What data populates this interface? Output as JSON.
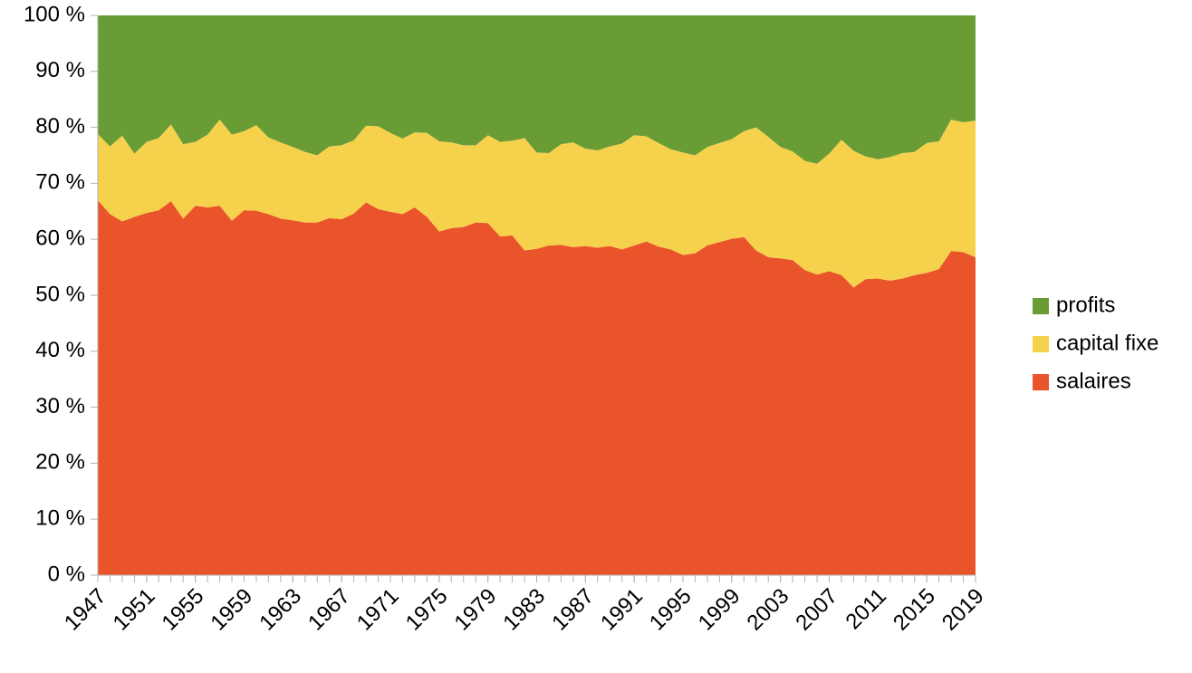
{
  "chart_data": {
    "type": "stacked_area",
    "stacked_percent": true,
    "legend": "right",
    "x": [
      1947,
      1948,
      1949,
      1950,
      1951,
      1952,
      1953,
      1954,
      1955,
      1956,
      1957,
      1958,
      1959,
      1960,
      1961,
      1962,
      1963,
      1964,
      1965,
      1966,
      1967,
      1968,
      1969,
      1970,
      1971,
      1972,
      1973,
      1974,
      1975,
      1976,
      1977,
      1978,
      1979,
      1980,
      1981,
      1982,
      1983,
      1984,
      1985,
      1986,
      1987,
      1988,
      1989,
      1990,
      1991,
      1992,
      1993,
      1994,
      1995,
      1996,
      1997,
      1998,
      1999,
      2000,
      2001,
      2002,
      2003,
      2004,
      2005,
      2006,
      2007,
      2008,
      2009,
      2010,
      2011,
      2012,
      2013,
      2014,
      2015,
      2016,
      2017,
      2018,
      2019
    ],
    "xlim": [
      1947,
      2019
    ],
    "xticks": [
      1947,
      1951,
      1955,
      1959,
      1963,
      1967,
      1971,
      1975,
      1979,
      1983,
      1987,
      1991,
      1995,
      1999,
      2003,
      2007,
      2011,
      2015,
      2019
    ],
    "ylim": [
      0,
      100
    ],
    "yticks": [
      {
        "value": 0,
        "label": "0 %"
      },
      {
        "value": 10,
        "label": "10 %"
      },
      {
        "value": 20,
        "label": "20 %"
      },
      {
        "value": 30,
        "label": "30 %"
      },
      {
        "value": 40,
        "label": "40 %"
      },
      {
        "value": 50,
        "label": "50 %"
      },
      {
        "value": 60,
        "label": "60 %"
      },
      {
        "value": 70,
        "label": "70 %"
      },
      {
        "value": 80,
        "label": "80 %"
      },
      {
        "value": 90,
        "label": "90 %"
      },
      {
        "value": 100,
        "label": "100 %"
      }
    ],
    "series": [
      {
        "name": "salaires",
        "color": "#ea542b",
        "values": [
          67,
          64.5,
          63.2,
          64,
          64.7,
          65.2,
          66.8,
          63.7,
          66,
          65.7,
          66,
          63.3,
          65.2,
          65.1,
          64.5,
          63.7,
          63.4,
          63,
          63,
          63.8,
          63.6,
          64.6,
          66.6,
          65.4,
          64.9,
          64.5,
          65.7,
          64,
          61.4,
          62,
          62.2,
          63,
          62.9,
          60.5,
          60.7,
          58,
          58.3,
          58.9,
          59,
          58.6,
          58.8,
          58.5,
          58.8,
          58.2,
          58.9,
          59.6,
          58.7,
          58.2,
          57.2,
          57.5,
          58.9,
          59.5,
          60.1,
          60.4,
          58,
          56.8,
          56.6,
          56.3,
          54.5,
          53.7,
          54.3,
          53.6,
          51.4,
          52.9,
          53,
          52.6,
          53,
          53.6,
          54,
          54.7,
          57.9,
          57.7,
          56.8
        ]
      },
      {
        "name": "capital fixe",
        "color": "#f6d14c",
        "values": [
          11.8,
          12.1,
          15.3,
          11.3,
          12.7,
          12.9,
          13.7,
          13.3,
          11.4,
          13,
          15.4,
          15.4,
          14.1,
          15.3,
          13.7,
          13.6,
          13.1,
          12.6,
          12,
          12.8,
          13.2,
          13.1,
          13.7,
          14.8,
          14.1,
          13.5,
          13.4,
          15,
          16.1,
          15.3,
          14.6,
          13.8,
          15.7,
          16.9,
          16.9,
          20.1,
          17.2,
          16.5,
          18,
          18.7,
          17.4,
          17.4,
          17.8,
          18.9,
          19.7,
          18.8,
          18.5,
          17.9,
          18.3,
          17.5,
          17.6,
          17.7,
          17.8,
          18.9,
          22,
          21.5,
          19.9,
          19.4,
          19.5,
          19.8,
          21,
          24.2,
          24.4,
          21.9,
          21.3,
          22.1,
          22.4,
          22,
          23.2,
          22.8,
          23.5,
          23.2,
          24.4
        ]
      },
      {
        "name": "profits",
        "color": "#6a9c36",
        "values": [
          21.2,
          23.4,
          21.5,
          24.7,
          22.6,
          21.9,
          19.5,
          23,
          22.6,
          21.3,
          18.6,
          21.3,
          20.7,
          19.6,
          21.8,
          22.7,
          23.5,
          24.4,
          25,
          23.4,
          23.2,
          22.3,
          19.7,
          19.8,
          21,
          22,
          20.9,
          21,
          22.5,
          22.7,
          23.2,
          23.2,
          21.4,
          22.6,
          22.4,
          21.9,
          24.5,
          24.6,
          23,
          22.7,
          23.8,
          24.1,
          23.4,
          22.9,
          21.4,
          21.6,
          22.8,
          23.9,
          24.5,
          25,
          23.5,
          22.8,
          22.1,
          20.7,
          20,
          21.7,
          23.5,
          24.3,
          26,
          26.5,
          24.7,
          22.2,
          24.2,
          25.2,
          25.7,
          25.3,
          24.6,
          24.4,
          22.8,
          22.5,
          18.6,
          19.1,
          18.8
        ]
      }
    ]
  }
}
